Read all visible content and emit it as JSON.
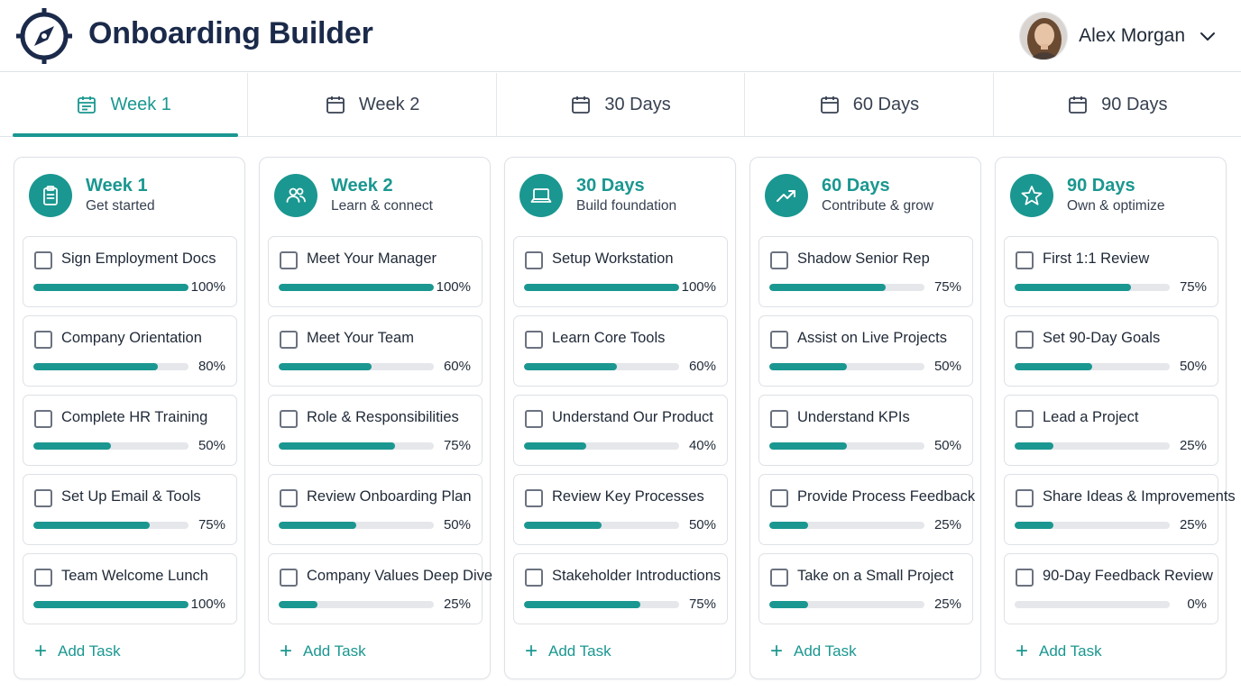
{
  "app": {
    "title": "Onboarding Builder",
    "logo_icon": "compass-icon",
    "accent_color": "#1a9790",
    "brand_color": "#1b2a4a"
  },
  "user": {
    "name": "Alex Morgan",
    "avatar_icon": "user-avatar",
    "menu_icon": "chevron-down-icon"
  },
  "tabs": [
    {
      "label": "Week 1",
      "icon": "calendar-icon",
      "active": true
    },
    {
      "label": "Week 2",
      "icon": "calendar-icon",
      "active": false
    },
    {
      "label": "30 Days",
      "icon": "calendar-icon",
      "active": false
    },
    {
      "label": "60 Days",
      "icon": "calendar-icon",
      "active": false
    },
    {
      "label": "90 Days",
      "icon": "calendar-icon",
      "active": false
    }
  ],
  "columns": [
    {
      "title": "Week 1",
      "subtitle": "Get started",
      "icon": "clipboard-icon",
      "add_label": "Add Task",
      "tasks": [
        {
          "label": "Sign Employment Docs",
          "progress": 100,
          "progress_text": "100%"
        },
        {
          "label": "Company Orientation",
          "progress": 80,
          "progress_text": "80%"
        },
        {
          "label": "Complete HR Training",
          "progress": 50,
          "progress_text": "50%"
        },
        {
          "label": "Set Up Email & Tools",
          "progress": 75,
          "progress_text": "75%"
        },
        {
          "label": "Team Welcome Lunch",
          "progress": 100,
          "progress_text": "100%"
        }
      ]
    },
    {
      "title": "Week 2",
      "subtitle": "Learn & connect",
      "icon": "people-icon",
      "add_label": "Add Task",
      "tasks": [
        {
          "label": "Meet Your Manager",
          "progress": 100,
          "progress_text": "100%"
        },
        {
          "label": "Meet Your Team",
          "progress": 60,
          "progress_text": "60%"
        },
        {
          "label": "Role & Responsibilities",
          "progress": 75,
          "progress_text": "75%"
        },
        {
          "label": "Review Onboarding Plan",
          "progress": 50,
          "progress_text": "50%"
        },
        {
          "label": "Company Values Deep Dive",
          "progress": 25,
          "progress_text": "25%"
        }
      ]
    },
    {
      "title": "30 Days",
      "subtitle": "Build foundation",
      "icon": "laptop-icon",
      "add_label": "Add Task",
      "tasks": [
        {
          "label": "Setup Workstation",
          "progress": 100,
          "progress_text": "100%"
        },
        {
          "label": "Learn Core Tools",
          "progress": 60,
          "progress_text": "60%"
        },
        {
          "label": "Understand Our Product",
          "progress": 40,
          "progress_text": "40%"
        },
        {
          "label": "Review Key Processes",
          "progress": 50,
          "progress_text": "50%"
        },
        {
          "label": "Stakeholder Introductions",
          "progress": 75,
          "progress_text": "75%"
        }
      ]
    },
    {
      "title": "60 Days",
      "subtitle": "Contribute & grow",
      "icon": "trending-up-icon",
      "add_label": "Add Task",
      "tasks": [
        {
          "label": "Shadow Senior Rep",
          "progress": 75,
          "progress_text": "75%"
        },
        {
          "label": "Assist on Live Projects",
          "progress": 50,
          "progress_text": "50%"
        },
        {
          "label": "Understand KPIs",
          "progress": 50,
          "progress_text": "50%"
        },
        {
          "label": "Provide Process Feedback",
          "progress": 25,
          "progress_text": "25%"
        },
        {
          "label": "Take on a Small Project",
          "progress": 25,
          "progress_text": "25%"
        }
      ]
    },
    {
      "title": "90 Days",
      "subtitle": "Own & optimize",
      "icon": "star-icon",
      "add_label": "Add Task",
      "tasks": [
        {
          "label": "First 1:1 Review",
          "progress": 75,
          "progress_text": "75%"
        },
        {
          "label": "Set 90-Day Goals",
          "progress": 50,
          "progress_text": "50%"
        },
        {
          "label": "Lead a Project",
          "progress": 25,
          "progress_text": "25%"
        },
        {
          "label": "Share Ideas & Improvements",
          "progress": 25,
          "progress_text": "25%"
        },
        {
          "label": "90-Day Feedback Review",
          "progress": 0,
          "progress_text": "0%"
        }
      ]
    }
  ]
}
